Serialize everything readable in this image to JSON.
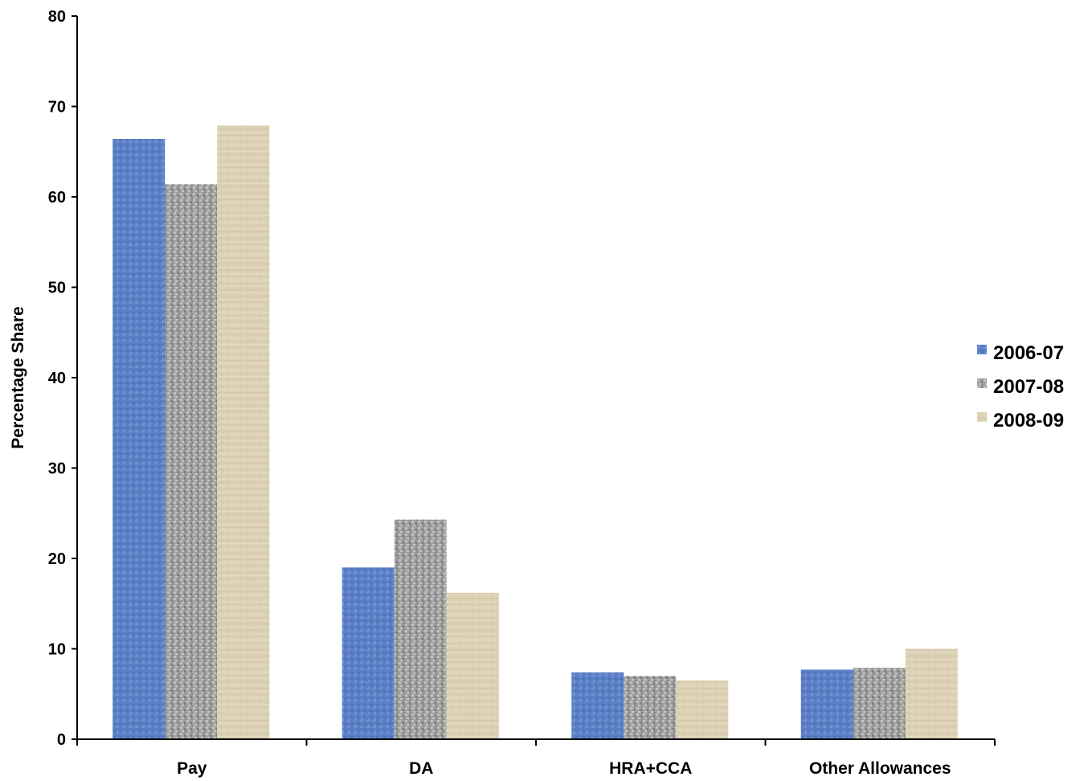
{
  "chart_data": {
    "type": "bar",
    "title": "",
    "xlabel": "",
    "ylabel": "Percentage Share",
    "ylim": [
      0,
      80
    ],
    "yticks": [
      0,
      10,
      20,
      30,
      40,
      50,
      60,
      70,
      80
    ],
    "grid": false,
    "legend_position": "right",
    "categories": [
      "Pay",
      "DA",
      "HRA+CCA",
      "Other Allowances"
    ],
    "series": [
      {
        "name": "2006-07",
        "color": "#5b7fc6",
        "values": [
          66.4,
          19.0,
          7.4,
          7.7
        ]
      },
      {
        "name": "2007-08",
        "color": "#9e9e9e",
        "values": [
          61.4,
          24.3,
          7.0,
          7.9
        ]
      },
      {
        "name": "2008-09",
        "color": "#ddd2b6",
        "values": [
          67.9,
          16.2,
          6.5,
          10.0
        ]
      }
    ]
  }
}
